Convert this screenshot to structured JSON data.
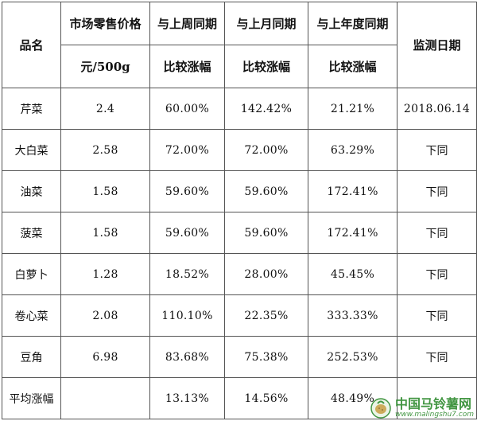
{
  "headers": {
    "name": "品名",
    "retail_price": "市场零售价格",
    "retail_unit": "元/500g",
    "vs_last_week": "与上周同期",
    "vs_last_month": "与上月同期",
    "vs_last_year": "与上年度同期",
    "compare": "比较涨幅",
    "date": "监测日期"
  },
  "rows": [
    {
      "name": "芹菜",
      "price": "2.4",
      "week": "60.00%",
      "month": "142.42%",
      "year": "21.21%",
      "date": "2018.06.14"
    },
    {
      "name": "大白菜",
      "price": "2.58",
      "week": "72.00%",
      "month": "72.00%",
      "year": "63.29%",
      "date": "下同"
    },
    {
      "name": "油菜",
      "price": "1.58",
      "week": "59.60%",
      "month": "59.60%",
      "year": "172.41%",
      "date": "下同"
    },
    {
      "name": "菠菜",
      "price": "1.58",
      "week": "59.60%",
      "month": "59.60%",
      "year": "172.41%",
      "date": "下同"
    },
    {
      "name": "白萝卜",
      "price": "1.28",
      "week": "18.52%",
      "month": "28.00%",
      "year": "45.45%",
      "date": "下同"
    },
    {
      "name": "卷心菜",
      "price": "2.08",
      "week": "110.10%",
      "month": "22.35%",
      "year": "333.33%",
      "date": "下同"
    },
    {
      "name": "豆角",
      "price": "6.98",
      "week": "83.68%",
      "month": "75.38%",
      "year": "252.53%",
      "date": "下同"
    }
  ],
  "average": {
    "name": "平均涨幅",
    "price": "",
    "week": "13.13%",
    "month": "14.56%",
    "year": "48.49%",
    "date": ""
  },
  "watermark": {
    "title": "中国马铃薯网",
    "url": "www.malingshu7.com"
  },
  "colors": {
    "border": "#555555",
    "watermark": "#2e8b2e"
  }
}
